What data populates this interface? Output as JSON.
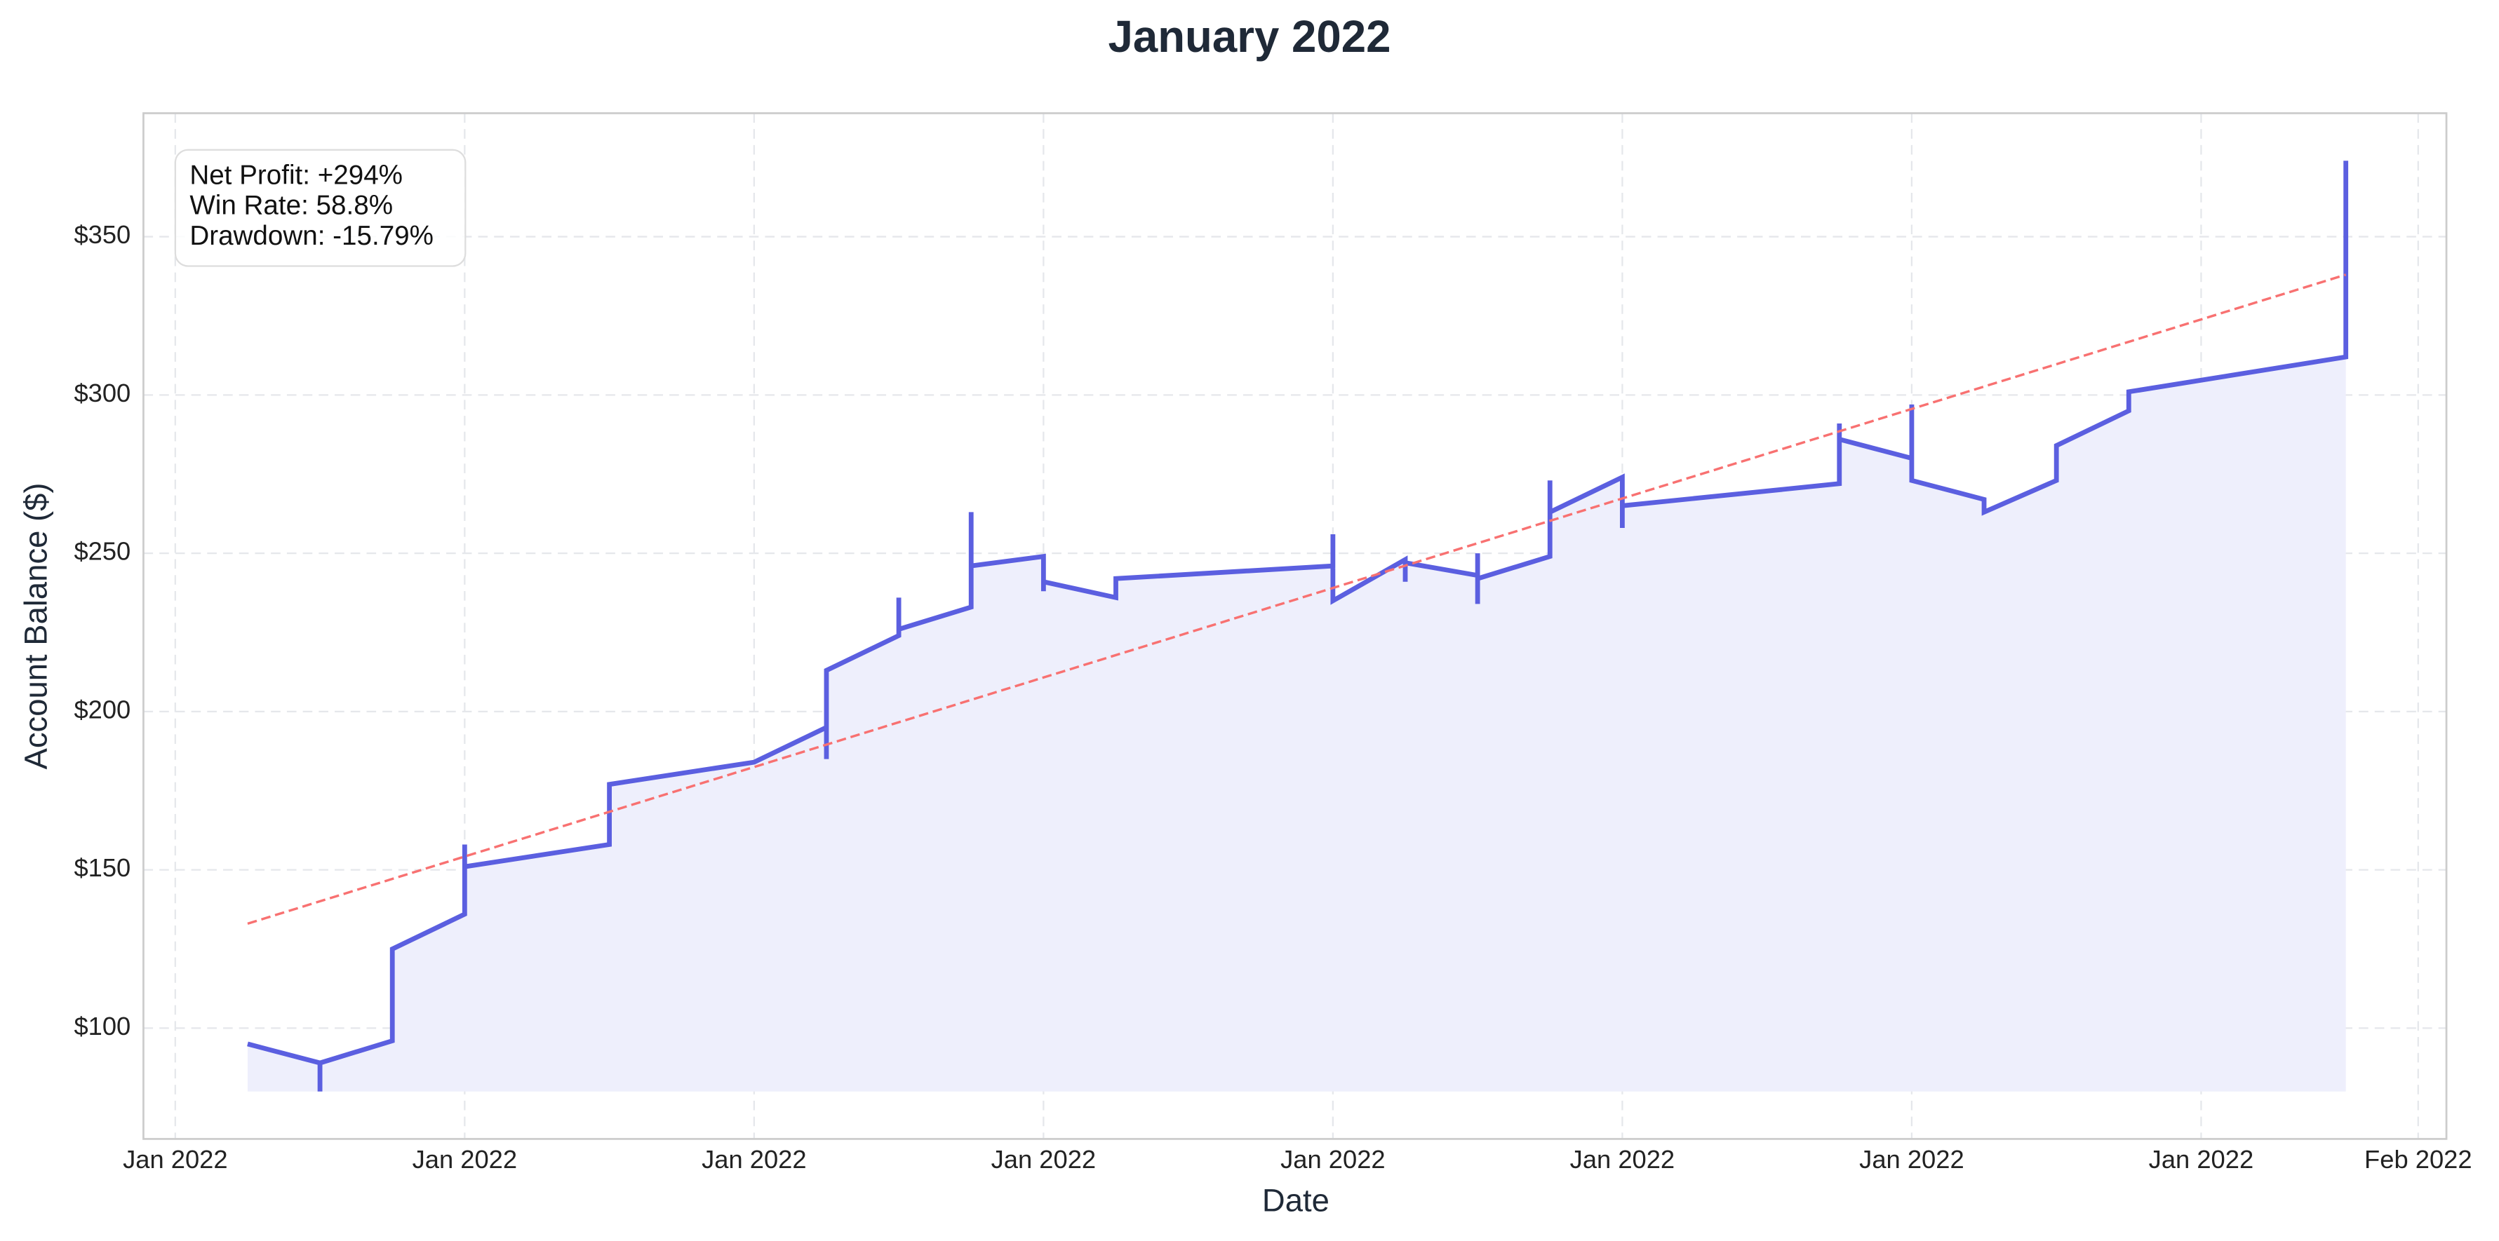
{
  "chart_data": {
    "type": "line",
    "title": "January 2022",
    "x_label": "Date",
    "y_label": "Account Balance ($)",
    "x": [
      1,
      2,
      2,
      2,
      3,
      3,
      4,
      4,
      4,
      6,
      6,
      8,
      9,
      9,
      9,
      10,
      10,
      10,
      11,
      11,
      11,
      12,
      12,
      12,
      13,
      13,
      16,
      16,
      16,
      17,
      17,
      17,
      18,
      18,
      18,
      18,
      19,
      19,
      19,
      20,
      20,
      20,
      23,
      23,
      23,
      24,
      24,
      24,
      25,
      25,
      26,
      26,
      27,
      27,
      30,
      30
    ],
    "series": [
      {
        "name": "Account Balance",
        "color": "#5b5fe0",
        "fill": "#eeeffc",
        "values": [
          95,
          89,
          80,
          89,
          96,
          125,
          136,
          158,
          151,
          158,
          177,
          184,
          195,
          185,
          213,
          224,
          236,
          226,
          233,
          263,
          246,
          249,
          238,
          241,
          236,
          242,
          246,
          256,
          235,
          248,
          241,
          247,
          243,
          234,
          250,
          242,
          249,
          273,
          263,
          274,
          258,
          265,
          272,
          291,
          286,
          280,
          297,
          273,
          267,
          263,
          273,
          284,
          295,
          301,
          312,
          374
        ]
      }
    ],
    "trend": {
      "x": [
        1,
        30
      ],
      "values": [
        133,
        338
      ],
      "color": "#f87171"
    },
    "annotation": [
      "Net Profit: +294%",
      "Win Rate: 58.8%",
      "Drawdown: -15.79%"
    ],
    "xlim": [
      -0.44,
      31.39
    ],
    "ylim": [
      65,
      389
    ],
    "xticks": [
      {
        "value": 0,
        "label": "Jan 2022"
      },
      {
        "value": 4,
        "label": "Jan 2022"
      },
      {
        "value": 8,
        "label": "Jan 2022"
      },
      {
        "value": 12,
        "label": "Jan 2022"
      },
      {
        "value": 16,
        "label": "Jan 2022"
      },
      {
        "value": 20,
        "label": "Jan 2022"
      },
      {
        "value": 24,
        "label": "Jan 2022"
      },
      {
        "value": 28,
        "label": "Jan 2022"
      },
      {
        "value": 31,
        "label": "Feb 2022"
      }
    ],
    "yticks": [
      {
        "value": 100,
        "label": "$100"
      },
      {
        "value": 150,
        "label": "$150"
      },
      {
        "value": 200,
        "label": "$200"
      },
      {
        "value": 250,
        "label": "$250"
      },
      {
        "value": 300,
        "label": "$300"
      },
      {
        "value": 350,
        "label": "$350"
      }
    ],
    "grid": true
  }
}
